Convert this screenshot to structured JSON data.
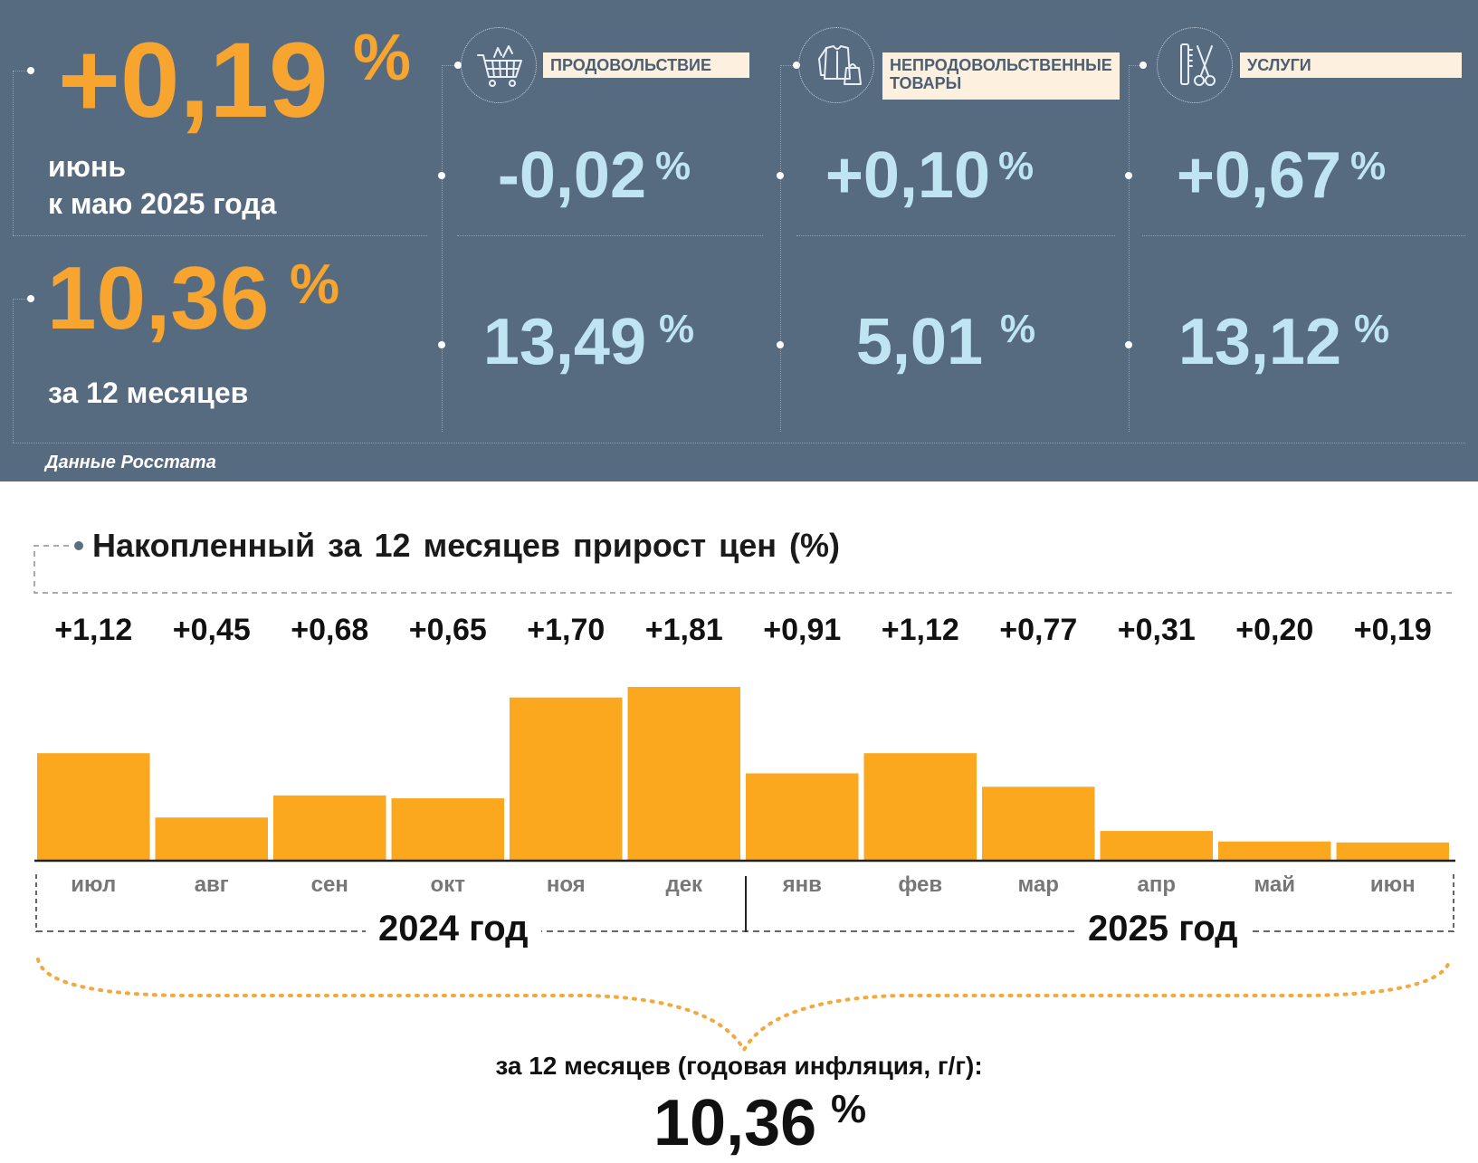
{
  "summary": {
    "monthly": {
      "value": "+0,19",
      "unit": "%",
      "label_line1": "июнь",
      "label_line2": "к маю 2025 года"
    },
    "annual": {
      "value": "10,36",
      "unit": "%",
      "label": "за 12 месяцев"
    },
    "source": "Данные Росстата"
  },
  "categories": [
    {
      "label_line1": "ПРОДОВОЛЬСТВИЕ",
      "label_line2": "",
      "icon": "shopping-cart-icon",
      "monthly": "-0,02",
      "annual": "13,49",
      "unit": "%"
    },
    {
      "label_line1": "НЕПРОДОВОЛЬСТВЕННЫЕ",
      "label_line2": "ТОВАРЫ",
      "icon": "clothing-icon",
      "monthly": "+0,10",
      "annual": "5,01",
      "unit": "%"
    },
    {
      "label_line1": "УСЛУГИ",
      "label_line2": "",
      "icon": "scissors-comb-icon",
      "monthly": "+0,67",
      "annual": "13,12",
      "unit": "%"
    }
  ],
  "chart_data": {
    "type": "bar",
    "title": "Накопленный за 12 месяцев прирост цен (%)",
    "categories": [
      "июл",
      "авг",
      "сен",
      "окт",
      "ноя",
      "дек",
      "янв",
      "фев",
      "мар",
      "апр",
      "май",
      "июн"
    ],
    "values": [
      1.12,
      0.45,
      0.68,
      0.65,
      1.7,
      1.81,
      0.91,
      1.12,
      0.77,
      0.31,
      0.2,
      0.19
    ],
    "value_labels": [
      "+1,12",
      "+0,45",
      "+0,68",
      "+0,65",
      "+1,70",
      "+1,81",
      "+0,91",
      "+1,12",
      "+0,77",
      "+0,31",
      "+0,20",
      "+0,19"
    ],
    "year_groups": [
      {
        "label": "2024 год",
        "months": 6
      },
      {
        "label": "2025 год",
        "months": 6
      }
    ],
    "bar_color": "#fba81f",
    "grid": false,
    "legend": "none",
    "total_label": "за 12 месяцев (годовая инфляция, г/г):",
    "total_value": "10,36",
    "total_unit": "%"
  }
}
